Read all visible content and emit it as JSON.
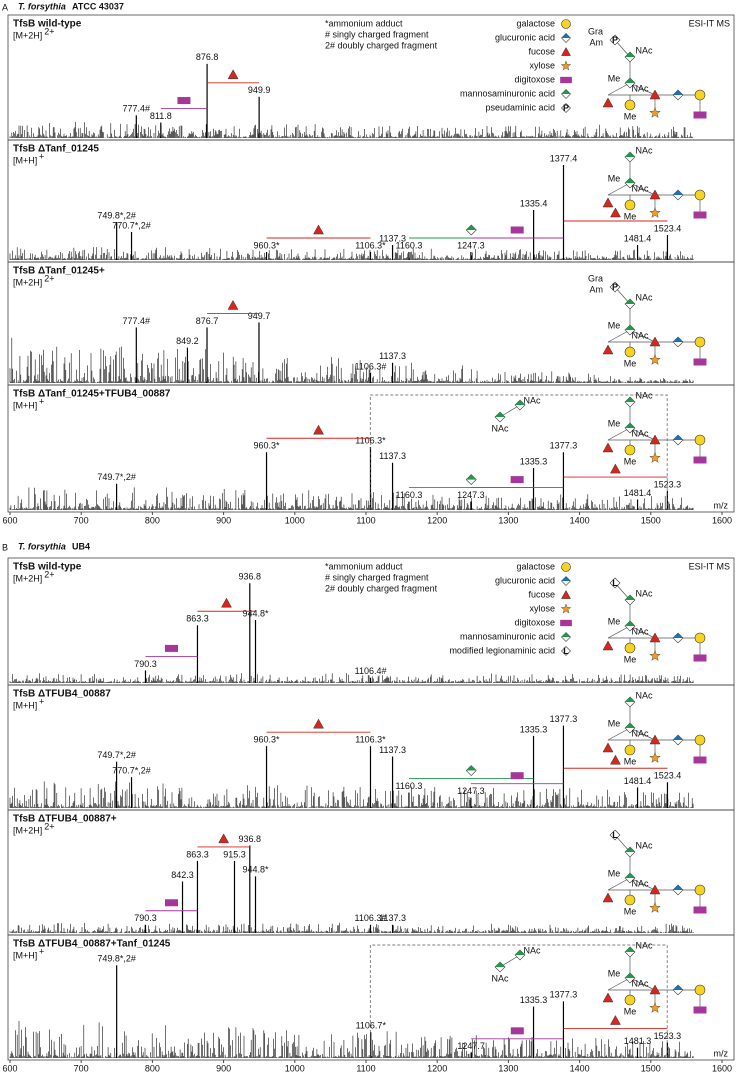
{
  "xaxis": {
    "label": "m/z",
    "xlim": [
      600,
      1600
    ],
    "xticks": [
      600,
      700,
      800,
      900,
      1000,
      1100,
      1200,
      1300,
      1400,
      1500,
      1600
    ]
  },
  "glycan_text": {
    "nac": "NAc",
    "me": "Me",
    "gra": "Gra",
    "am": "Am"
  },
  "panels": [
    {
      "letter": "A",
      "organism": "T. forsythia",
      "strain": "ATCC 43037",
      "method": "ESI-IT MS",
      "notes": [
        "*ammonium adduct",
        "# singly charged fragment",
        "2# doubly charged fragment"
      ],
      "legend": [
        "galactose",
        "glucuronic acid",
        "fucose",
        "xylose",
        "digitoxose",
        "mannosaminuronic acid",
        "pseudaminic acid"
      ],
      "spectra": [
        {
          "name": "TfsB wild-type",
          "ion": "[M+2H]",
          "charge": "2+",
          "glycan_top": "P",
          "peaks": [
            {
              "label": "777.4#",
              "mz": 777.4,
              "intensity": 22
            },
            {
              "label": "811.8",
              "mz": 811.8,
              "intensity": 15
            },
            {
              "label": "876.8",
              "mz": 876.8,
              "intensity": 72
            },
            {
              "label": "949.9",
              "mz": 949.9,
              "intensity": 40
            }
          ]
        },
        {
          "name": "TfsB ΔTanf_01245",
          "ion": "[M+H]",
          "charge": "+",
          "peaks": [
            {
              "label": "749.8*,2#",
              "mz": 749.8,
              "intensity": 38
            },
            {
              "label": "770.7*,2#",
              "mz": 770.7,
              "intensity": 28
            },
            {
              "label": "960.3*",
              "mz": 960.3,
              "intensity": 8
            },
            {
              "label": "1106.3*",
              "mz": 1106.3,
              "intensity": 8
            },
            {
              "label": "1137.3",
              "mz": 1137.3,
              "intensity": 15
            },
            {
              "label": "1160.3",
              "mz": 1160.3,
              "intensity": 8
            },
            {
              "label": "1247.3",
              "mz": 1247.3,
              "intensity": 8
            },
            {
              "label": "1335.4",
              "mz": 1335.4,
              "intensity": 50
            },
            {
              "label": "1377.4",
              "mz": 1377.4,
              "intensity": 95
            },
            {
              "label": "1481.4",
              "mz": 1481.4,
              "intensity": 15
            },
            {
              "label": "1523.4",
              "mz": 1523.4,
              "intensity": 25
            }
          ]
        },
        {
          "name": "TfsB ΔTanf_01245+",
          "ion": "[M+2H]",
          "charge": "2+",
          "glycan_top": "P",
          "peaks": [
            {
              "label": "777.4#",
              "mz": 777.4,
              "intensity": 55
            },
            {
              "label": "849.2",
              "mz": 849.2,
              "intensity": 35
            },
            {
              "label": "876.7",
              "mz": 876.7,
              "intensity": 55
            },
            {
              "label": "949.7",
              "mz": 949.7,
              "intensity": 60
            },
            {
              "label": "1106.3#",
              "mz": 1106.3,
              "intensity": 10
            },
            {
              "label": "1137.3",
              "mz": 1137.3,
              "intensity": 20
            }
          ]
        },
        {
          "name": "TfsB ΔTanf_01245+TFUB4_00887",
          "ion": "[M+H]",
          "charge": "+",
          "disaccharide": true,
          "peaks": [
            {
              "label": "749.7*,2#",
              "mz": 749.7,
              "intensity": 25
            },
            {
              "label": "960.3*",
              "mz": 960.3,
              "intensity": 55
            },
            {
              "label": "1106.3*",
              "mz": 1106.3,
              "intensity": 60
            },
            {
              "label": "1137.3",
              "mz": 1137.3,
              "intensity": 45
            },
            {
              "label": "1160.3",
              "mz": 1160.3,
              "intensity": 8
            },
            {
              "label": "1247.3",
              "mz": 1247.3,
              "intensity": 8
            },
            {
              "label": "1335.3",
              "mz": 1335.3,
              "intensity": 40
            },
            {
              "label": "1377.3",
              "mz": 1377.3,
              "intensity": 55
            },
            {
              "label": "1481.4",
              "mz": 1481.4,
              "intensity": 10
            },
            {
              "label": "1523.3",
              "mz": 1523.3,
              "intensity": 18
            }
          ]
        }
      ]
    },
    {
      "letter": "B",
      "organism": "T. forsythia",
      "strain": "UB4",
      "method": "ESI-IT MS",
      "notes": [
        "*ammonium adduct",
        "# singly charged fragment",
        "2# doubly charged fragment"
      ],
      "legend": [
        "galactose",
        "glucuronic acid",
        "fucose",
        "xylose",
        "digitoxose",
        "mannosaminuronic acid",
        "modified legionaminic acid"
      ],
      "spectra": [
        {
          "name": "TfsB wild-type",
          "ion": "[M+2H]",
          "charge": "2+",
          "glycan_top": "L",
          "peaks": [
            {
              "label": "790.3",
              "mz": 790.3,
              "intensity": 12
            },
            {
              "label": "863.3",
              "mz": 863.3,
              "intensity": 55
            },
            {
              "label": "936.8",
              "mz": 936.8,
              "intensity": 95
            },
            {
              "label": "944.8*",
              "mz": 944.8,
              "intensity": 60
            },
            {
              "label": "1106.4#",
              "mz": 1106.4,
              "intensity": 5
            }
          ]
        },
        {
          "name": "TfsB ΔTFUB4_00887",
          "ion": "[M+H]",
          "charge": "+",
          "peaks": [
            {
              "label": "749.7*,2#",
              "mz": 749.7,
              "intensity": 45
            },
            {
              "label": "770.7*,2#",
              "mz": 770.7,
              "intensity": 30
            },
            {
              "label": "960.3*",
              "mz": 960.3,
              "intensity": 60
            },
            {
              "label": "1106.3*",
              "mz": 1106.3,
              "intensity": 60
            },
            {
              "label": "1137.3",
              "mz": 1137.3,
              "intensity": 50
            },
            {
              "label": "1160.3",
              "mz": 1160.3,
              "intensity": 15
            },
            {
              "label": "1247.3",
              "mz": 1247.3,
              "intensity": 10
            },
            {
              "label": "1335.3",
              "mz": 1335.3,
              "intensity": 70
            },
            {
              "label": "1377.3",
              "mz": 1377.3,
              "intensity": 80
            },
            {
              "label": "1481.4",
              "mz": 1481.4,
              "intensity": 20
            },
            {
              "label": "1523.4",
              "mz": 1523.4,
              "intensity": 25
            }
          ]
        },
        {
          "name": "TfsB ΔTFUB4_00887+",
          "ion": "[M+2H]",
          "charge": "2+",
          "glycan_top": "L",
          "peaks": [
            {
              "label": "790.3",
              "mz": 790.3,
              "intensity": 8
            },
            {
              "label": "842.3",
              "mz": 842.3,
              "intensity": 50
            },
            {
              "label": "863.3",
              "mz": 863.3,
              "intensity": 70
            },
            {
              "label": "915.3",
              "mz": 915.3,
              "intensity": 70
            },
            {
              "label": "936.8",
              "mz": 936.8,
              "intensity": 85
            },
            {
              "label": "944.8*",
              "mz": 944.8,
              "intensity": 55
            },
            {
              "label": "1106.3#",
              "mz": 1106.3,
              "intensity": 8
            },
            {
              "label": "1137.3",
              "mz": 1137.3,
              "intensity": 8
            }
          ]
        },
        {
          "name": "TfsB ΔTFUB4_00887+Tanf_01245",
          "ion": "[M+H]",
          "charge": "+",
          "disaccharide": true,
          "peaks": [
            {
              "label": "749.8*,2#",
              "mz": 749.8,
              "intensity": 90
            },
            {
              "label": "1106.7*",
              "mz": 1106.7,
              "intensity": 25
            },
            {
              "label": "1247.7",
              "mz": 1247.7,
              "intensity": 5
            },
            {
              "label": "1335.3",
              "mz": 1335.3,
              "intensity": 50
            },
            {
              "label": "1377.3",
              "mz": 1377.3,
              "intensity": 55
            },
            {
              "label": "1481.3",
              "mz": 1481.3,
              "intensity": 10
            },
            {
              "label": "1523.3",
              "mz": 1523.3,
              "intensity": 15
            }
          ]
        }
      ]
    }
  ]
}
